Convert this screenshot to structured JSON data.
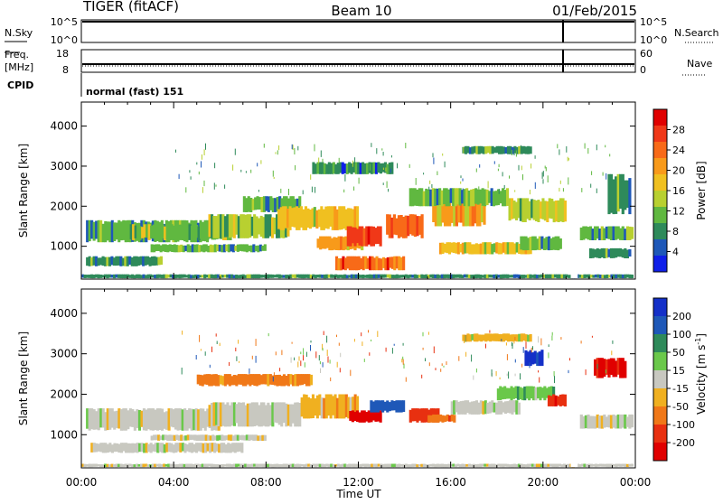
{
  "header": {
    "radar": "TIGER (fitACF)",
    "beam": "Beam 10",
    "date": "01/Feb/2015"
  },
  "status_panels": {
    "nsky_label": "N.Sky",
    "nsearch_label": "N.Search",
    "freq_label_1": "Freq.",
    "freq_label_2": "[MHz]",
    "nave_label": "Nave",
    "cpid_label": "CPID",
    "cpid_value": "normal (fast) 151",
    "n_ticks_left": [
      "10^5",
      "10^0"
    ],
    "n_ticks_right": [
      "10^5",
      "10^0"
    ],
    "freq_ticks_left": [
      "18",
      "8"
    ],
    "freq_ticks_right": [
      "60",
      "0"
    ]
  },
  "x_axis": {
    "label": "Time UT",
    "ticks": [
      "00:00",
      "04:00",
      "08:00",
      "12:00",
      "16:00",
      "20:00",
      "00:00"
    ]
  },
  "y_axis": {
    "label": "Slant Range [km]",
    "ticks": [
      "4000",
      "3000",
      "2000",
      "1000"
    ]
  },
  "power_colorbar": {
    "label": "Power [dB]",
    "ticks": [
      "28",
      "24",
      "20",
      "16",
      "12",
      "8",
      "4"
    ],
    "colors": [
      "#e00000",
      "#f03818",
      "#f86a18",
      "#f89a1a",
      "#f0c020",
      "#b8d030",
      "#60b840",
      "#2e8a5a",
      "#1e58b8",
      "#0f1fe8"
    ]
  },
  "velocity_colorbar": {
    "label": "Velocity [m s",
    "label_sup": "-1",
    "label_end": "]",
    "ticks": [
      "200",
      "100",
      "50",
      "15",
      "-15",
      "-50",
      "-100",
      "-200"
    ],
    "colors": [
      "#1430c8",
      "#1e58b8",
      "#2e8a5a",
      "#6ac84a",
      "#c8c8c0",
      "#f0b020",
      "#f07818",
      "#e83010",
      "#e00000"
    ]
  },
  "chart_data": [
    {
      "type": "heatmap",
      "title": "Power",
      "xlabel": "Time UT",
      "ylabel": "Slant Range [km]",
      "xlim": [
        "00:00",
        "24:00"
      ],
      "ylim": [
        180,
        4600
      ],
      "colorbar_range": [
        0,
        30
      ],
      "bands": [
        {
          "t": [
            0.0,
            23.9
          ],
          "range": [
            200,
            300
          ],
          "level": 8
        },
        {
          "t": [
            0.2,
            5.5
          ],
          "range": [
            1100,
            1650
          ],
          "level": 10
        },
        {
          "t": [
            0.2,
            3.5
          ],
          "range": [
            500,
            750
          ],
          "level": 8
        },
        {
          "t": [
            2.0,
            6.5
          ],
          "range": [
            1150,
            1550
          ],
          "level": 11
        },
        {
          "t": [
            3.0,
            8.0
          ],
          "range": [
            850,
            1050
          ],
          "level": 9
        },
        {
          "t": [
            5.5,
            9.0
          ],
          "range": [
            1200,
            1800
          ],
          "level": 12
        },
        {
          "t": [
            7.0,
            9.5
          ],
          "range": [
            1850,
            2250
          ],
          "level": 9
        },
        {
          "t": [
            8.5,
            12.0
          ],
          "range": [
            1400,
            2000
          ],
          "level": 16
        },
        {
          "t": [
            10.2,
            12.2
          ],
          "range": [
            900,
            1250
          ],
          "level": 20
        },
        {
          "t": [
            11.5,
            13.0
          ],
          "range": [
            1000,
            1500
          ],
          "level": 28
        },
        {
          "t": [
            13.2,
            14.8
          ],
          "range": [
            1200,
            1800
          ],
          "level": 22
        },
        {
          "t": [
            11.0,
            14.0
          ],
          "range": [
            400,
            750
          ],
          "level": 24
        },
        {
          "t": [
            15.2,
            17.5
          ],
          "range": [
            1500,
            2100
          ],
          "level": 20
        },
        {
          "t": [
            15.5,
            19.5
          ],
          "range": [
            800,
            1100
          ],
          "level": 16
        },
        {
          "t": [
            14.2,
            18.5
          ],
          "range": [
            2000,
            2450
          ],
          "level": 10
        },
        {
          "t": [
            18.5,
            21.0
          ],
          "range": [
            1600,
            2200
          ],
          "level": 12
        },
        {
          "t": [
            19.0,
            20.8
          ],
          "range": [
            900,
            1250
          ],
          "level": 10
        },
        {
          "t": [
            21.6,
            23.9
          ],
          "range": [
            1150,
            1500
          ],
          "level": 9
        },
        {
          "t": [
            22.0,
            23.8
          ],
          "range": [
            700,
            950
          ],
          "level": 8
        },
        {
          "t": [
            22.8,
            23.8
          ],
          "range": [
            1800,
            2800
          ],
          "level": 8
        },
        {
          "t": [
            16.5,
            19.5
          ],
          "range": [
            3300,
            3500
          ],
          "level": 7
        },
        {
          "t": [
            10.0,
            13.5
          ],
          "range": [
            2800,
            3100
          ],
          "level": 6
        }
      ]
    },
    {
      "type": "heatmap",
      "title": "Velocity",
      "xlabel": "Time UT",
      "ylabel": "Slant Range [km]",
      "xlim": [
        "00:00",
        "24:00"
      ],
      "ylim": [
        180,
        4600
      ],
      "colorbar_range": [
        -250,
        250
      ],
      "bands": [
        {
          "t": [
            0.0,
            23.9
          ],
          "range": [
            200,
            280
          ],
          "level": 0
        },
        {
          "t": [
            0.2,
            6.0
          ],
          "range": [
            1100,
            1650
          ],
          "level": 0
        },
        {
          "t": [
            0.4,
            7.0
          ],
          "range": [
            550,
            800
          ],
          "level": 0
        },
        {
          "t": [
            3.0,
            8.0
          ],
          "range": [
            850,
            1000
          ],
          "level": 0
        },
        {
          "t": [
            5.5,
            9.5
          ],
          "range": [
            1200,
            1800
          ],
          "level": 0
        },
        {
          "t": [
            9.5,
            12.0
          ],
          "range": [
            1400,
            2000
          ],
          "level": -40
        },
        {
          "t": [
            11.6,
            13.0
          ],
          "range": [
            1300,
            1600
          ],
          "level": -220
        },
        {
          "t": [
            12.5,
            14.0
          ],
          "range": [
            1550,
            1850
          ],
          "level": 150
        },
        {
          "t": [
            14.2,
            15.5
          ],
          "range": [
            1300,
            1650
          ],
          "level": -150
        },
        {
          "t": [
            15.0,
            16.2
          ],
          "range": [
            1300,
            1500
          ],
          "level": -80
        },
        {
          "t": [
            16.0,
            19.0
          ],
          "range": [
            1500,
            1850
          ],
          "level": 0
        },
        {
          "t": [
            18.0,
            20.5
          ],
          "range": [
            1850,
            2200
          ],
          "level": 30
        },
        {
          "t": [
            19.2,
            20.0
          ],
          "range": [
            2700,
            3100
          ],
          "level": 220
        },
        {
          "t": [
            20.2,
            21.0
          ],
          "range": [
            1700,
            2000
          ],
          "level": -200
        },
        {
          "t": [
            22.2,
            23.6
          ],
          "range": [
            2400,
            2900
          ],
          "level": -230
        },
        {
          "t": [
            21.6,
            23.9
          ],
          "range": [
            1150,
            1500
          ],
          "level": 0
        },
        {
          "t": [
            5.0,
            10.0
          ],
          "range": [
            2200,
            2500
          ],
          "level": -60
        },
        {
          "t": [
            16.5,
            19.5
          ],
          "range": [
            3300,
            3500
          ],
          "level": -20
        }
      ]
    }
  ]
}
